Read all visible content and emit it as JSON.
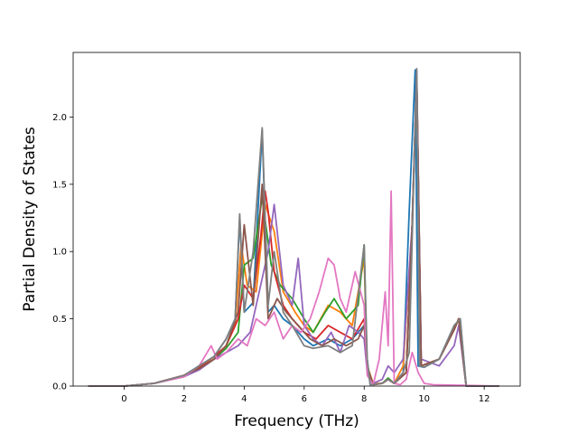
{
  "chart_data": {
    "type": "line",
    "title": "",
    "xlabel": "Frequency (THz)",
    "ylabel": "Partial Density of States",
    "xlim": [
      -1.7,
      13.2
    ],
    "ylim": [
      0,
      2.48
    ],
    "xticks": [
      0,
      2,
      4,
      6,
      8,
      10,
      12
    ],
    "xtick_labels": [
      "0",
      "2",
      "4",
      "6",
      "8",
      "10",
      "12"
    ],
    "yticks": [
      0.0,
      0.5,
      1.0,
      1.5,
      2.0
    ],
    "ytick_labels": [
      "0.0",
      "0.5",
      "1.0",
      "1.5",
      "2.0"
    ],
    "grid": false,
    "legend": "none",
    "series": [
      {
        "color": "#1f77b4",
        "x": [
          -1.2,
          0,
          1.0,
          2.0,
          2.5,
          3.0,
          3.4,
          3.7,
          3.85,
          4.0,
          4.3,
          4.6,
          4.8,
          5.0,
          5.3,
          5.6,
          6.0,
          6.3,
          6.8,
          7.2,
          7.6,
          8.0,
          8.1,
          8.2,
          8.6,
          8.8,
          9.0,
          9.3,
          9.5,
          9.7,
          9.8,
          10.0,
          10.5,
          11.0,
          11.2,
          11.4,
          12.5
        ],
        "y": [
          0,
          0,
          0.02,
          0.08,
          0.15,
          0.22,
          0.35,
          0.5,
          1.25,
          0.55,
          0.62,
          1.9,
          0.55,
          0.6,
          0.5,
          0.45,
          0.35,
          0.3,
          0.35,
          0.3,
          0.35,
          0.45,
          0.2,
          0.01,
          0.02,
          0.05,
          0.02,
          0.1,
          1.3,
          2.35,
          0.15,
          0.14,
          0.2,
          0.45,
          0.5,
          0,
          0
        ]
      },
      {
        "color": "#ff7f0e",
        "x": [
          -1.2,
          0,
          1.0,
          2.0,
          2.5,
          3.0,
          3.4,
          3.7,
          3.9,
          4.1,
          4.4,
          4.7,
          5.0,
          5.3,
          5.7,
          6.0,
          6.3,
          6.8,
          7.2,
          7.6,
          8.0,
          8.1,
          8.3,
          8.6,
          8.8,
          9.0,
          9.3,
          9.6,
          9.75,
          9.9,
          10.5,
          11.0,
          11.15,
          11.4,
          12.5
        ],
        "y": [
          0,
          0,
          0.02,
          0.08,
          0.14,
          0.2,
          0.3,
          0.45,
          1.05,
          0.75,
          0.7,
          1.35,
          1.15,
          0.7,
          0.55,
          0.45,
          0.4,
          0.6,
          0.55,
          0.45,
          0.95,
          0.15,
          0.02,
          0.02,
          0.05,
          0.02,
          0.15,
          1.2,
          2.3,
          0.15,
          0.2,
          0.42,
          0.5,
          0,
          0
        ]
      },
      {
        "color": "#2ca02c",
        "x": [
          -1.2,
          0,
          1.0,
          2.0,
          2.5,
          3.0,
          3.4,
          3.8,
          4.0,
          4.3,
          4.6,
          4.9,
          5.2,
          5.6,
          6.0,
          6.3,
          6.7,
          7.0,
          7.4,
          7.8,
          8.0,
          8.1,
          8.3,
          8.6,
          8.8,
          9.0,
          9.4,
          9.6,
          9.75,
          9.9,
          10.5,
          11.0,
          11.15,
          11.4,
          12.5
        ],
        "y": [
          0,
          0,
          0.02,
          0.07,
          0.13,
          0.2,
          0.28,
          0.4,
          0.9,
          0.95,
          1.4,
          0.9,
          0.75,
          0.65,
          0.5,
          0.4,
          0.55,
          0.65,
          0.5,
          0.6,
          1.05,
          0.1,
          0.01,
          0.02,
          0.06,
          0.02,
          0.1,
          1.2,
          2.3,
          0.15,
          0.2,
          0.42,
          0.5,
          0,
          0
        ]
      },
      {
        "color": "#d62728",
        "x": [
          -1.2,
          0,
          1.0,
          2.0,
          2.5,
          3.0,
          3.4,
          3.8,
          4.0,
          4.3,
          4.55,
          4.7,
          4.8,
          5.0,
          5.3,
          5.6,
          6.0,
          6.4,
          6.8,
          7.2,
          7.6,
          8.0,
          8.1,
          8.3,
          8.6,
          8.8,
          9.0,
          9.4,
          9.6,
          9.75,
          9.9,
          10.5,
          11.0,
          11.15,
          11.4,
          12.5
        ],
        "y": [
          0,
          0,
          0.02,
          0.08,
          0.14,
          0.22,
          0.3,
          0.5,
          0.75,
          0.65,
          1.1,
          1.45,
          1.3,
          0.85,
          0.6,
          0.5,
          0.4,
          0.35,
          0.45,
          0.4,
          0.35,
          0.5,
          0.12,
          0.01,
          0.02,
          0.05,
          0.02,
          0.1,
          1.2,
          2.3,
          0.15,
          0.2,
          0.42,
          0.5,
          0,
          0
        ]
      },
      {
        "color": "#9467bd",
        "x": [
          -1.2,
          0,
          1.0,
          2.0,
          2.5,
          3.0,
          3.4,
          3.8,
          4.2,
          4.5,
          4.8,
          5.0,
          5.3,
          5.6,
          5.8,
          6.0,
          6.3,
          6.6,
          6.9,
          7.2,
          7.5,
          7.8,
          8.0,
          8.1,
          8.3,
          8.6,
          8.8,
          9.0,
          9.3,
          9.6,
          9.75,
          9.9,
          10.5,
          11.0,
          11.15,
          11.4,
          12.5
        ],
        "y": [
          0,
          0,
          0.02,
          0.07,
          0.12,
          0.2,
          0.25,
          0.3,
          0.4,
          0.7,
          1.0,
          1.35,
          0.75,
          0.6,
          0.95,
          0.45,
          0.35,
          0.3,
          0.4,
          0.25,
          0.45,
          0.4,
          0.35,
          0.1,
          0.02,
          0.05,
          0.15,
          0.1,
          0.2,
          1.2,
          2.35,
          0.2,
          0.15,
          0.3,
          0.45,
          0,
          0
        ]
      },
      {
        "color": "#8c564b",
        "x": [
          -1.2,
          0,
          1.0,
          2.0,
          2.5,
          3.0,
          3.4,
          3.8,
          4.0,
          4.3,
          4.6,
          4.8,
          5.1,
          5.4,
          5.8,
          6.2,
          6.6,
          7.0,
          7.4,
          7.8,
          8.0,
          8.1,
          8.3,
          8.6,
          8.8,
          9.0,
          9.4,
          9.6,
          9.75,
          9.9,
          10.5,
          11.0,
          11.15,
          11.4,
          12.5
        ],
        "y": [
          0,
          0,
          0.02,
          0.08,
          0.13,
          0.2,
          0.3,
          0.55,
          1.2,
          0.6,
          1.5,
          0.5,
          0.65,
          0.55,
          0.45,
          0.35,
          0.3,
          0.35,
          0.3,
          0.35,
          0.45,
          0.15,
          0.01,
          0.02,
          0.05,
          0.02,
          0.1,
          1.2,
          2.3,
          0.15,
          0.2,
          0.42,
          0.5,
          0,
          0
        ]
      },
      {
        "color": "#e377c2",
        "x": [
          -1.2,
          0,
          1.0,
          2.0,
          2.5,
          2.9,
          3.1,
          3.4,
          3.8,
          4.1,
          4.4,
          4.7,
          5.0,
          5.3,
          5.6,
          5.9,
          6.2,
          6.5,
          6.8,
          7.0,
          7.2,
          7.4,
          7.7,
          8.0,
          8.1,
          8.3,
          8.5,
          8.7,
          8.8,
          8.9,
          9.0,
          9.2,
          9.4,
          9.6,
          9.8,
          10.0,
          10.3,
          12.5
        ],
        "y": [
          0,
          0,
          0.02,
          0.07,
          0.15,
          0.3,
          0.2,
          0.25,
          0.35,
          0.3,
          0.5,
          0.45,
          0.55,
          0.35,
          0.45,
          0.4,
          0.5,
          0.7,
          0.95,
          0.9,
          0.65,
          0.55,
          0.85,
          0.6,
          0.08,
          0.01,
          0.2,
          0.7,
          0.3,
          1.45,
          0.02,
          0.01,
          0.05,
          0.25,
          0.1,
          0.02,
          0.01,
          0.0
        ]
      },
      {
        "color": "#7f7f7f",
        "x": [
          -1.2,
          0,
          1.0,
          2.0,
          2.5,
          3.0,
          3.4,
          3.7,
          3.85,
          4.0,
          4.3,
          4.6,
          4.8,
          5.0,
          5.3,
          5.6,
          6.0,
          6.3,
          6.8,
          7.2,
          7.6,
          8.0,
          8.1,
          8.2,
          8.6,
          8.8,
          9.0,
          9.3,
          9.5,
          9.75,
          9.85,
          10.0,
          10.5,
          11.0,
          11.2,
          11.4,
          12.5
        ],
        "y": [
          0,
          0,
          0.02,
          0.08,
          0.15,
          0.22,
          0.35,
          0.5,
          1.28,
          0.55,
          1.0,
          1.92,
          0.6,
          1.0,
          0.55,
          0.45,
          0.3,
          0.28,
          0.3,
          0.25,
          0.3,
          1.05,
          0.2,
          0.01,
          0.02,
          0.05,
          0.02,
          0.1,
          0.25,
          2.36,
          0.15,
          0.14,
          0.2,
          0.45,
          0.5,
          0,
          0
        ]
      }
    ]
  }
}
